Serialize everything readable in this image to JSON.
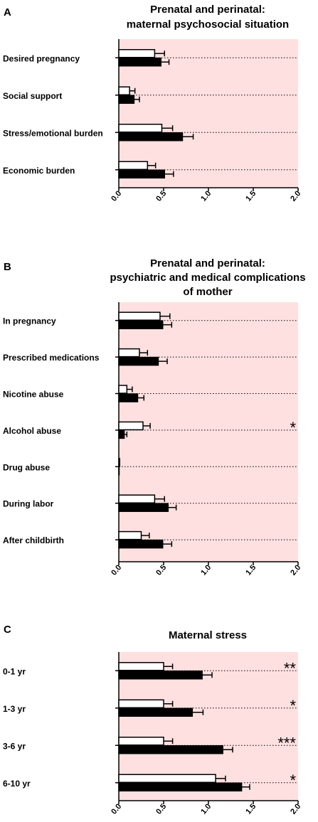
{
  "chart_data": [
    {
      "type": "bar",
      "orientation": "horizontal",
      "panel": "A",
      "title": [
        "Prenatal and perinatal:",
        "maternal psychosocial situation"
      ],
      "categories": [
        "Desired pregnancy",
        "Social support",
        "Stress/emotional burden",
        "Economic burden"
      ],
      "series": [
        {
          "fill": "#ffffff",
          "values": [
            0.4,
            0.12,
            0.48,
            0.32
          ],
          "errors": [
            0.11,
            0.06,
            0.12,
            0.09
          ]
        },
        {
          "fill": "#000000",
          "values": [
            0.47,
            0.17,
            0.71,
            0.51
          ],
          "errors": [
            0.09,
            0.06,
            0.12,
            0.1
          ]
        }
      ],
      "significance": [
        "",
        "",
        "",
        ""
      ],
      "xlim": [
        0,
        2.0
      ],
      "xticks": [
        "0.0",
        "0.5",
        "1.0",
        "1.5",
        "2.0"
      ],
      "plot_background": "#ffe0e0",
      "grid": "dotted line per category"
    },
    {
      "type": "bar",
      "orientation": "horizontal",
      "panel": "B",
      "title": [
        "Prenatal and perinatal:",
        "psychiatric and medical complications",
        "of mother"
      ],
      "categories": [
        "In pregnancy",
        "Prescribed medications",
        "Nicotine abuse",
        "Alcohol abuse",
        "Drug abuse",
        "During labor",
        "After childbirth"
      ],
      "series": [
        {
          "fill": "#ffffff",
          "values": [
            0.46,
            0.23,
            0.09,
            0.27,
            0.01,
            0.4,
            0.25
          ],
          "errors": [
            0.11,
            0.09,
            0.06,
            0.08,
            0.0,
            0.11,
            0.09
          ]
        },
        {
          "fill": "#000000",
          "values": [
            0.49,
            0.44,
            0.21,
            0.06,
            0.0,
            0.55,
            0.49
          ],
          "errors": [
            0.1,
            0.1,
            0.07,
            0.03,
            0.0,
            0.09,
            0.1
          ]
        }
      ],
      "significance": [
        "",
        "",
        "",
        "*",
        "",
        "",
        ""
      ],
      "xlim": [
        0,
        2.0
      ],
      "xticks": [
        "0.0",
        "0.5",
        "1.0",
        "1.5",
        "2.0"
      ],
      "plot_background": "#ffe0e0",
      "grid": "dotted line per category"
    },
    {
      "type": "bar",
      "orientation": "horizontal",
      "panel": "C",
      "title": [
        "Maternal stress"
      ],
      "categories": [
        "0-1 yr",
        "1-3 yr",
        "3-6 yr",
        "6-10 yr"
      ],
      "series": [
        {
          "fill": "#ffffff",
          "values": [
            0.5,
            0.5,
            0.5,
            1.08
          ],
          "errors": [
            0.1,
            0.1,
            0.1,
            0.11
          ]
        },
        {
          "fill": "#000000",
          "values": [
            0.93,
            0.82,
            1.16,
            1.37
          ],
          "errors": [
            0.11,
            0.12,
            0.11,
            0.09
          ]
        }
      ],
      "significance": [
        "**",
        "*",
        "***",
        "*"
      ],
      "xlim": [
        0,
        2.0
      ],
      "xticks": [
        "0.0",
        "0.5",
        "1.0",
        "1.5",
        "2.0"
      ],
      "plot_background": "#ffe0e0",
      "grid": "dotted line per category"
    }
  ]
}
